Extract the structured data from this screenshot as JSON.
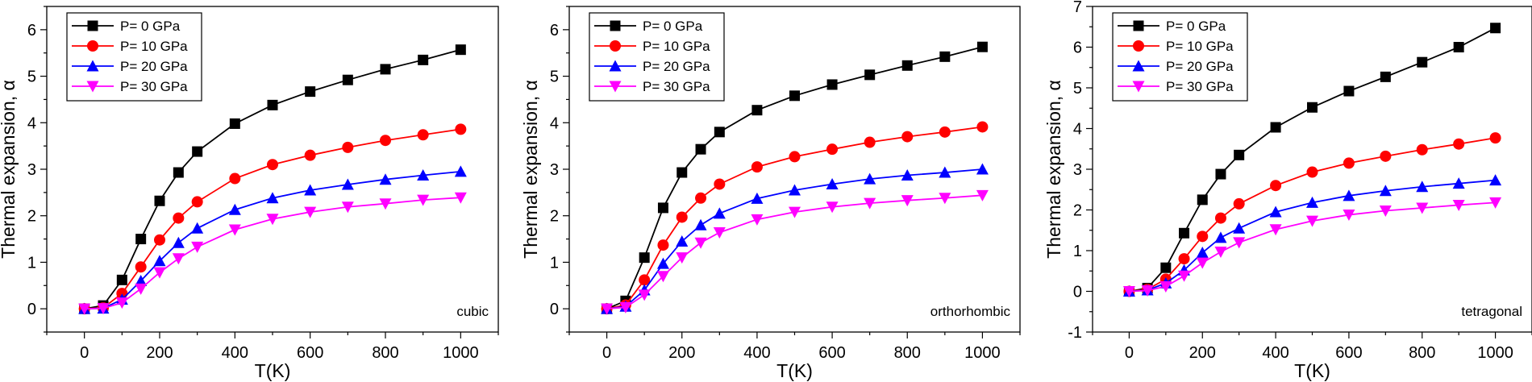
{
  "figure": {
    "description_free": true
  },
  "chart_data": [
    {
      "type": "line",
      "panel_label": "cubic",
      "title": "",
      "xlabel": "T(K)",
      "ylabel": "Thermal expansion, α",
      "xlim": [
        -100,
        1100
      ],
      "ylim": [
        -0.5,
        6.5
      ],
      "xticks": [
        0,
        200,
        400,
        600,
        800,
        1000
      ],
      "yticks": [
        0,
        1,
        2,
        3,
        4,
        5,
        6
      ],
      "x": [
        0,
        50,
        100,
        150,
        200,
        250,
        300,
        400,
        500,
        600,
        700,
        800,
        900,
        1000
      ],
      "legend_position": "top-left",
      "series": [
        {
          "name": "P= 0 GPa",
          "color": "#000000",
          "marker": "square",
          "values": [
            0,
            0.07,
            0.62,
            1.5,
            2.32,
            2.93,
            3.38,
            3.98,
            4.38,
            4.67,
            4.92,
            5.15,
            5.35,
            5.57
          ]
        },
        {
          "name": "P= 10 GPa",
          "color": "#ff0000",
          "marker": "circle",
          "values": [
            0,
            0.02,
            0.33,
            0.9,
            1.48,
            1.95,
            2.3,
            2.8,
            3.1,
            3.3,
            3.47,
            3.62,
            3.74,
            3.86
          ]
        },
        {
          "name": "P= 20 GPa",
          "color": "#0000ff",
          "marker": "triangle-up",
          "values": [
            0,
            0.01,
            0.2,
            0.6,
            1.03,
            1.42,
            1.73,
            2.13,
            2.38,
            2.55,
            2.67,
            2.78,
            2.87,
            2.95
          ]
        },
        {
          "name": "P= 30 GPa",
          "color": "#ff00ff",
          "marker": "triangle-down",
          "values": [
            0,
            0.01,
            0.13,
            0.43,
            0.78,
            1.08,
            1.33,
            1.7,
            1.93,
            2.08,
            2.19,
            2.26,
            2.34,
            2.39
          ]
        }
      ]
    },
    {
      "type": "line",
      "panel_label": "orthorhombic",
      "title": "",
      "xlabel": "T(K)",
      "ylabel": "Thermal expansion, α",
      "xlim": [
        -100,
        1100
      ],
      "ylim": [
        -0.5,
        6.5
      ],
      "xticks": [
        0,
        200,
        400,
        600,
        800,
        1000
      ],
      "yticks": [
        0,
        1,
        2,
        3,
        4,
        5,
        6
      ],
      "x": [
        0,
        50,
        100,
        150,
        200,
        250,
        300,
        400,
        500,
        600,
        700,
        800,
        900,
        1000
      ],
      "legend_position": "top-left",
      "series": [
        {
          "name": "P= 0 GPa",
          "color": "#000000",
          "marker": "square",
          "values": [
            0,
            0.17,
            1.1,
            2.17,
            2.93,
            3.43,
            3.8,
            4.27,
            4.58,
            4.82,
            5.03,
            5.23,
            5.42,
            5.63
          ]
        },
        {
          "name": "P= 10 GPa",
          "color": "#ff0000",
          "marker": "circle",
          "values": [
            0,
            0.08,
            0.62,
            1.37,
            1.97,
            2.38,
            2.68,
            3.05,
            3.27,
            3.43,
            3.58,
            3.7,
            3.8,
            3.91
          ]
        },
        {
          "name": "P= 20 GPa",
          "color": "#0000ff",
          "marker": "triangle-up",
          "values": [
            0,
            0.05,
            0.4,
            0.97,
            1.45,
            1.8,
            2.05,
            2.37,
            2.55,
            2.68,
            2.79,
            2.87,
            2.93,
            3.0
          ]
        },
        {
          "name": "P= 30 GPa",
          "color": "#ff00ff",
          "marker": "triangle-down",
          "values": [
            0,
            0.03,
            0.3,
            0.7,
            1.1,
            1.42,
            1.64,
            1.92,
            2.08,
            2.19,
            2.27,
            2.33,
            2.38,
            2.44
          ]
        }
      ]
    },
    {
      "type": "line",
      "panel_label": "tetragonal",
      "title": "",
      "xlabel": "T(K)",
      "ylabel": "Thermal expansion, α",
      "xlim": [
        -100,
        1100
      ],
      "ylim": [
        -1,
        7
      ],
      "xticks": [
        0,
        200,
        400,
        600,
        800,
        1000
      ],
      "yticks": [
        -1,
        0,
        1,
        2,
        3,
        4,
        5,
        6,
        7
      ],
      "x": [
        0,
        50,
        100,
        150,
        200,
        250,
        300,
        400,
        500,
        600,
        700,
        800,
        900,
        1000
      ],
      "legend_position": "top-left",
      "series": [
        {
          "name": "P= 0 GPa",
          "color": "#000000",
          "marker": "square",
          "values": [
            0,
            0.08,
            0.58,
            1.43,
            2.25,
            2.88,
            3.35,
            4.03,
            4.52,
            4.92,
            5.27,
            5.63,
            6.0,
            6.47
          ]
        },
        {
          "name": "P= 10 GPa",
          "color": "#ff0000",
          "marker": "circle",
          "values": [
            0,
            0.05,
            0.3,
            0.8,
            1.35,
            1.8,
            2.15,
            2.6,
            2.93,
            3.15,
            3.32,
            3.48,
            3.62,
            3.77
          ]
        },
        {
          "name": "P= 20 GPa",
          "color": "#0000ff",
          "marker": "triangle-up",
          "values": [
            0,
            0.03,
            0.2,
            0.52,
            0.95,
            1.32,
            1.55,
            1.95,
            2.18,
            2.35,
            2.47,
            2.57,
            2.65,
            2.73
          ]
        },
        {
          "name": "P= 30 GPa",
          "color": "#ff00ff",
          "marker": "triangle-down",
          "values": [
            0,
            0.02,
            0.12,
            0.38,
            0.7,
            0.97,
            1.2,
            1.52,
            1.73,
            1.88,
            1.98,
            2.05,
            2.12,
            2.18
          ]
        }
      ]
    }
  ]
}
